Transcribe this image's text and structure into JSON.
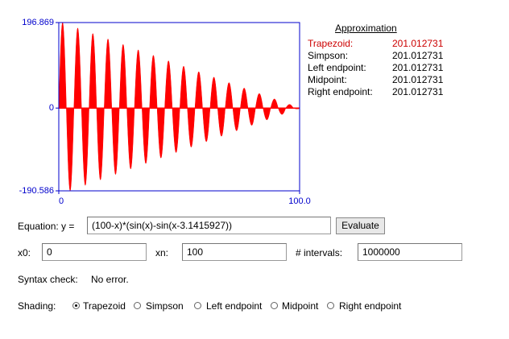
{
  "plot": {
    "xlim": [
      0,
      100
    ],
    "ylim": [
      -190.586,
      196.869
    ],
    "xticks": [
      0,
      {
        "value": 100,
        "label": "100.0"
      }
    ],
    "yticks": [
      196.869,
      0,
      -190.586
    ],
    "fill_color": "#ff0000",
    "axis_color": "#0000cc",
    "peaks_x": [
      1.571,
      4.712,
      7.854,
      10.996,
      14.137,
      17.279,
      20.42,
      23.562,
      26.704,
      29.845,
      32.987,
      36.128,
      39.27,
      42.412,
      45.553,
      48.695,
      51.836,
      54.978,
      58.119,
      61.261,
      64.403,
      67.544,
      70.686,
      73.827,
      76.969,
      80.111,
      83.252,
      86.394,
      89.535,
      92.677,
      95.819,
      98.96
    ],
    "peaks_y": [
      196.858,
      -190.576,
      184.292,
      -178.008,
      171.726,
      -165.442,
      159.16,
      -152.876,
      146.592,
      -140.31,
      134.026,
      -127.744,
      121.46,
      -115.176,
      108.894,
      -102.61,
      96.328,
      -90.044,
      83.762,
      -77.478,
      71.194,
      -64.912,
      58.628,
      -52.346,
      46.062,
      -39.778,
      33.496,
      -27.212,
      20.93,
      -14.646,
      8.362,
      -2.08
    ]
  },
  "approximation": {
    "title": "Approximation",
    "rows": [
      [
        "Trapezoid:",
        "201.012731"
      ],
      [
        "Simpson:",
        "201.012731"
      ],
      [
        "Left endpoint:",
        "201.012731"
      ],
      [
        "Midpoint:",
        "201.012731"
      ],
      [
        "Right endpoint:",
        "201.012731"
      ]
    ]
  },
  "equation": {
    "label": "Equation: y =",
    "value": "(100-x)*(sin(x)-sin(x-3.1415927))",
    "button": "Evaluate"
  },
  "range": {
    "x0_label": "x0:",
    "x0": "0",
    "xn_label": "xn:",
    "xn": "100",
    "intervals_label": "# intervals:",
    "intervals": "1000000"
  },
  "syntax": {
    "label": "Syntax check:",
    "value": "No error."
  },
  "shading": {
    "label": "Shading:",
    "options": [
      "Trapezoid",
      "Simpson",
      "Left endpoint",
      "Midpoint",
      "Right endpoint"
    ],
    "selected": 0
  }
}
